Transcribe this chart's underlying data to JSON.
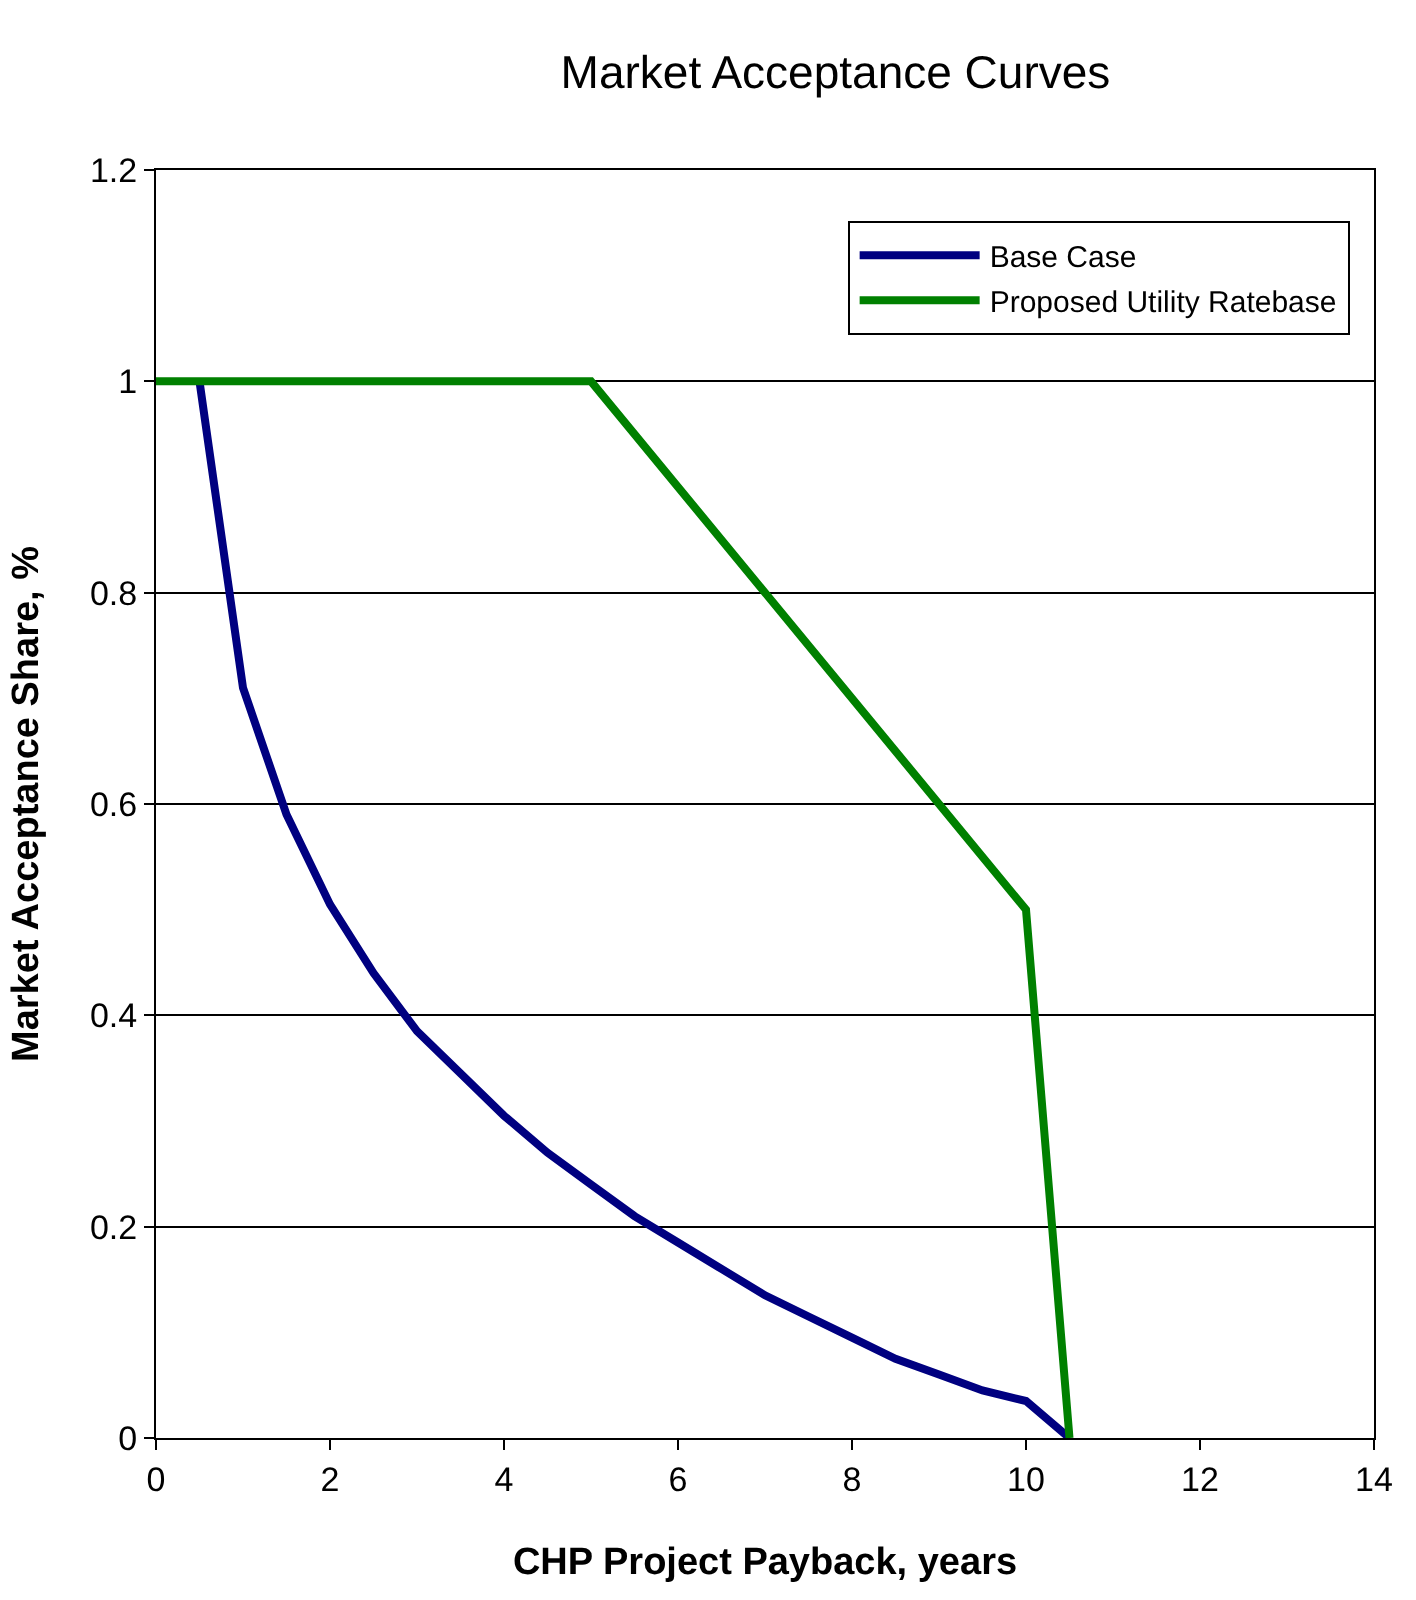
{
  "chart_data": {
    "type": "line",
    "title": "Market Acceptance Curves",
    "xlabel": "CHP Project Payback, years",
    "ylabel": "Market Acceptance Share, %",
    "xlim": [
      0,
      14
    ],
    "xticks": [
      0,
      2,
      4,
      6,
      8,
      10,
      12,
      14
    ],
    "ylim": [
      0,
      1.2
    ],
    "yticks": [
      0,
      0.2,
      0.4,
      0.6,
      0.8,
      1,
      1.2
    ],
    "grid": "y",
    "legend": "top right",
    "marker": "none",
    "line_style": "solid",
    "series": [
      {
        "name": "Base Case",
        "color": "#000080",
        "x": [
          0.5,
          1,
          1.5,
          2,
          2.5,
          3,
          3.5,
          4,
          4.5,
          5,
          5.5,
          6,
          6.5,
          7,
          7.5,
          8,
          8.5,
          9,
          9.5,
          10,
          10.5
        ],
        "values": [
          1,
          0.71,
          0.59,
          0.505,
          0.44,
          0.385,
          0.345,
          0.305,
          0.27,
          0.24,
          0.21,
          0.185,
          0.16,
          0.135,
          0.115,
          0.095,
          0.075,
          0.06,
          0.045,
          0.035,
          0
        ]
      },
      {
        "name": "Proposed Utility Ratebase",
        "color": "#008000",
        "x": [
          0,
          5,
          10,
          10.5
        ],
        "values": [
          1,
          1,
          0.5,
          0
        ]
      }
    ]
  }
}
